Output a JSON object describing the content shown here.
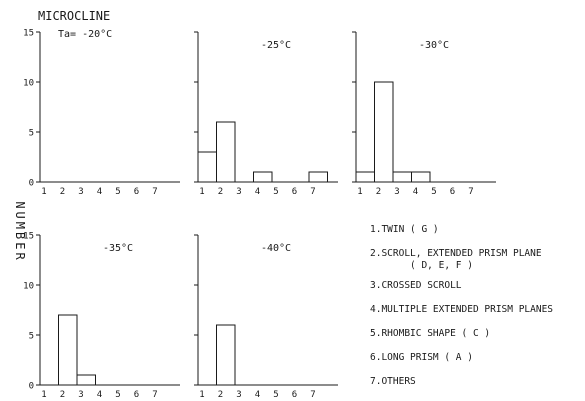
{
  "chart_data": [
    {
      "type": "bar",
      "title": "MICROCLINE",
      "annotation": "Ta= -20°C",
      "panel_label": "",
      "categories": [
        "1",
        "2",
        "3",
        "4",
        "5",
        "6",
        "7"
      ],
      "values": [
        0,
        0,
        0,
        0,
        0,
        0,
        0
      ],
      "ylim": [
        0,
        15
      ],
      "yticks": [
        "0",
        "5",
        "10",
        "15"
      ]
    },
    {
      "type": "bar",
      "panel_label": "-25°C",
      "categories": [
        "1",
        "2",
        "3",
        "4",
        "5",
        "6",
        "7"
      ],
      "values": [
        3,
        6,
        0,
        1,
        0,
        0,
        1
      ],
      "ylim": [
        0,
        15
      ]
    },
    {
      "type": "bar",
      "panel_label": "-30°C",
      "categories": [
        "1",
        "2",
        "3",
        "4",
        "5",
        "6",
        "7"
      ],
      "values": [
        1,
        10,
        1,
        1,
        0,
        0,
        0
      ],
      "ylim": [
        0,
        15
      ]
    },
    {
      "type": "bar",
      "panel_label": "-35°C",
      "categories": [
        "1",
        "2",
        "3",
        "4",
        "5",
        "6",
        "7"
      ],
      "values": [
        0,
        7,
        1,
        0,
        0,
        0,
        0
      ],
      "ylim": [
        0,
        15
      ],
      "yticks": [
        "0",
        "5",
        "10",
        "15"
      ]
    },
    {
      "type": "bar",
      "panel_label": "-40°C",
      "categories": [
        "1",
        "2",
        "3",
        "4",
        "5",
        "6",
        "7"
      ],
      "values": [
        0,
        6,
        0,
        0,
        0,
        0,
        0
      ],
      "ylim": [
        0,
        15
      ]
    }
  ],
  "ylabel": "NUMBER",
  "legend": {
    "items": [
      "1.TWIN ( G )",
      "2.SCROLL, EXTENDED PRISM PLANE",
      "( D, E, F )",
      "3.CROSSED SCROLL",
      "4.MULTIPLE EXTENDED PRISM PLANES",
      "5.RHOMBIC SHAPE ( C )",
      "6.LONG PRISM ( A )",
      "7.OTHERS"
    ]
  }
}
